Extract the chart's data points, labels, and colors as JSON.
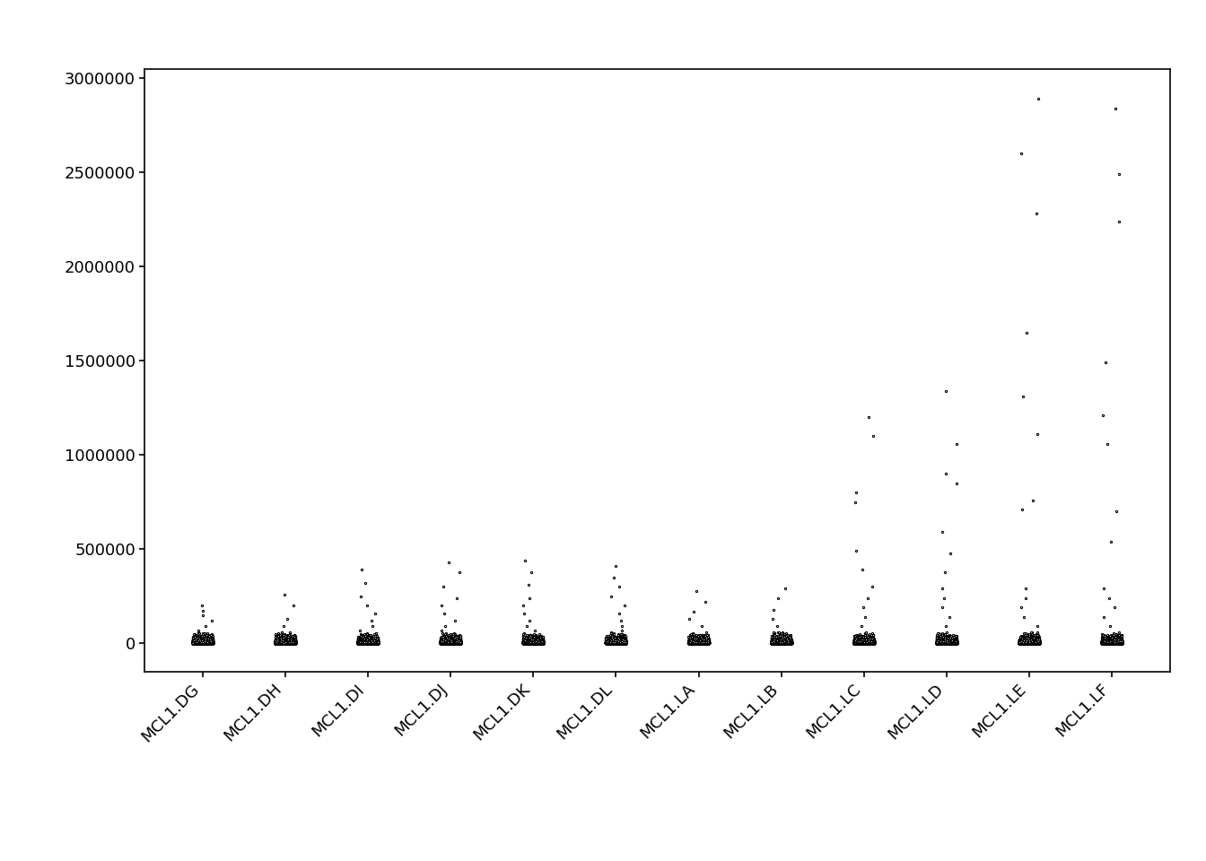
{
  "samples": [
    "MCL1.DG",
    "MCL1.DH",
    "MCL1.DI",
    "MCL1.DJ",
    "MCL1.DK",
    "MCL1.DL",
    "MCL1.LA",
    "MCL1.LB",
    "MCL1.LC",
    "MCL1.LD",
    "MCL1.LE",
    "MCL1.LF"
  ],
  "ylim": [
    -150000,
    3050000
  ],
  "yticks": [
    0,
    500000,
    1000000,
    1500000,
    2000000,
    2500000,
    3000000
  ],
  "ytick_labels": [
    "0",
    "500000",
    "1000000",
    "1500000",
    "2000000",
    "2500000",
    "3000000"
  ],
  "point_color": "black",
  "point_facecolor": "white",
  "point_size": 4,
  "point_linewidth": 0.8,
  "background_color": "white",
  "seed": 42,
  "outlier_data": {
    "MCL1.DG": [
      200000,
      175000,
      150000,
      120000,
      90000,
      70000,
      50000,
      30000,
      20000,
      10000,
      5000,
      2000
    ],
    "MCL1.DH": [
      260000,
      200000,
      130000,
      90000,
      50000,
      20000,
      8000,
      3000
    ],
    "MCL1.DI": [
      390000,
      320000,
      250000,
      200000,
      160000,
      120000,
      90000,
      70000,
      50000,
      30000,
      15000,
      8000,
      4000
    ],
    "MCL1.DJ": [
      430000,
      380000,
      300000,
      240000,
      200000,
      160000,
      120000,
      90000,
      70000,
      50000,
      30000,
      15000,
      8000
    ],
    "MCL1.DK": [
      440000,
      380000,
      310000,
      240000,
      200000,
      160000,
      120000,
      90000,
      70000,
      50000,
      30000,
      15000
    ],
    "MCL1.DL": [
      410000,
      350000,
      300000,
      250000,
      200000,
      160000,
      120000,
      90000,
      70000,
      50000,
      30000
    ],
    "MCL1.LA": [
      280000,
      220000,
      170000,
      130000,
      90000,
      60000,
      35000,
      15000
    ],
    "MCL1.LB": [
      290000,
      240000,
      180000,
      130000,
      90000,
      60000,
      35000,
      15000
    ],
    "MCL1.LC": [
      1200000,
      1100000,
      800000,
      750000,
      490000,
      390000,
      300000,
      240000,
      190000,
      140000,
      90000,
      60000,
      35000,
      15000
    ],
    "MCL1.LD": [
      1340000,
      1060000,
      900000,
      850000,
      590000,
      480000,
      380000,
      290000,
      240000,
      190000,
      140000,
      90000,
      60000,
      35000
    ],
    "MCL1.LE": [
      2890000,
      2600000,
      2280000,
      1650000,
      1310000,
      1110000,
      760000,
      710000,
      290000,
      240000,
      190000,
      140000,
      90000,
      60000
    ],
    "MCL1.LF": [
      2840000,
      2490000,
      2240000,
      1490000,
      1210000,
      1060000,
      700000,
      540000,
      290000,
      240000,
      190000,
      140000,
      90000,
      60000
    ]
  }
}
